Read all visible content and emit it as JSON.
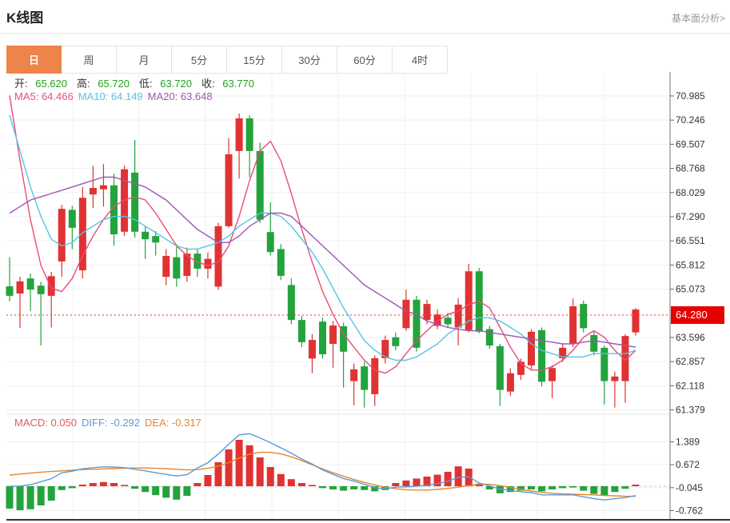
{
  "header": {
    "title": "K线图",
    "link": "基本面分析>"
  },
  "tabs": [
    {
      "label": "日",
      "active": true
    },
    {
      "label": "周",
      "active": false
    },
    {
      "label": "月",
      "active": false
    },
    {
      "label": "5分",
      "active": false
    },
    {
      "label": "15分",
      "active": false
    },
    {
      "label": "30分",
      "active": false
    },
    {
      "label": "60分",
      "active": false
    },
    {
      "label": "4时",
      "active": false
    }
  ],
  "legend": {
    "ohlc": [
      {
        "label": "开:",
        "value": "65.620"
      },
      {
        "label": "高:",
        "value": "65.720"
      },
      {
        "label": "低:",
        "value": "63.720"
      },
      {
        "label": "收:",
        "value": "63.770"
      }
    ],
    "ma": [
      {
        "label": "MA5:",
        "value": "64.466",
        "color": "#e8517e"
      },
      {
        "label": "MA10:",
        "value": "64.149",
        "color": "#55c5e2"
      },
      {
        "label": "MA20:",
        "value": "63.648",
        "color": "#a055b5"
      }
    ],
    "macd": [
      {
        "label": "MACD:",
        "value": "0.050",
        "color": "#e25b5b"
      },
      {
        "label": "DIFF:",
        "value": "-0.292",
        "color": "#5b9bd5"
      },
      {
        "label": "DEA:",
        "value": "-0.317",
        "color": "#e8862e"
      }
    ]
  },
  "colors": {
    "up": "#e03232",
    "down": "#23a33c",
    "ma5": "#eb4b78",
    "ma10": "#55c5e2",
    "ma20": "#a055b5",
    "diff": "#5b9bd5",
    "dea": "#e8862e",
    "price_line": "#e53935",
    "badge_bg": "#e60000",
    "value_green": "#21a121",
    "axis_text": "#333333"
  },
  "chart_data": {
    "type": "candlestick_with_macd",
    "price_axis_labels": [
      "70.985",
      "70.246",
      "69.507",
      "68.768",
      "68.029",
      "67.290",
      "66.551",
      "65.812",
      "65.073",
      "63.596",
      "62.857",
      "62.118",
      "61.379"
    ],
    "price_line": {
      "value": 64.28,
      "label": "64.280"
    },
    "candles_format": [
      "open",
      "high",
      "low",
      "close"
    ],
    "candles": [
      [
        65.16,
        66.05,
        64.7,
        64.87
      ],
      [
        64.94,
        65.45,
        63.89,
        65.31
      ],
      [
        65.4,
        65.55,
        64.4,
        65.06
      ],
      [
        65.18,
        65.3,
        63.35,
        64.92
      ],
      [
        64.87,
        65.6,
        63.9,
        65.47
      ],
      [
        65.92,
        67.65,
        65.45,
        67.53
      ],
      [
        67.5,
        67.62,
        66.3,
        66.95
      ],
      [
        65.65,
        68.2,
        65.4,
        67.87
      ],
      [
        67.97,
        68.85,
        67.55,
        68.17
      ],
      [
        68.13,
        68.9,
        67.6,
        68.25
      ],
      [
        68.25,
        68.6,
        66.4,
        66.75
      ],
      [
        66.83,
        68.85,
        66.7,
        68.74
      ],
      [
        68.64,
        69.64,
        66.65,
        66.83
      ],
      [
        66.83,
        67.0,
        66.0,
        66.6
      ],
      [
        66.7,
        66.85,
        66.1,
        66.5
      ],
      [
        65.45,
        66.3,
        65.2,
        66.09
      ],
      [
        66.05,
        66.45,
        65.15,
        65.4
      ],
      [
        65.48,
        66.35,
        65.3,
        66.16
      ],
      [
        66.16,
        66.3,
        65.45,
        65.7
      ],
      [
        65.7,
        66.2,
        65.4,
        66.0
      ],
      [
        65.15,
        67.1,
        65.05,
        67.0
      ],
      [
        67.0,
        69.7,
        66.95,
        69.2
      ],
      [
        69.3,
        70.45,
        68.46,
        70.3
      ],
      [
        70.3,
        70.4,
        68.5,
        69.3
      ],
      [
        69.3,
        69.55,
        67.1,
        67.2
      ],
      [
        66.82,
        67.73,
        66.1,
        66.21
      ],
      [
        66.3,
        66.45,
        65.35,
        65.48
      ],
      [
        65.2,
        65.4,
        64.0,
        64.13
      ],
      [
        64.13,
        64.25,
        63.3,
        63.45
      ],
      [
        62.95,
        63.7,
        62.5,
        63.52
      ],
      [
        64.08,
        64.2,
        62.95,
        63.08
      ],
      [
        63.4,
        64.1,
        62.67,
        63.96
      ],
      [
        63.94,
        64.05,
        62.06,
        63.16
      ],
      [
        62.26,
        62.8,
        61.52,
        62.62
      ],
      [
        62.71,
        62.85,
        61.45,
        61.99
      ],
      [
        61.86,
        63.05,
        61.5,
        62.96
      ],
      [
        62.96,
        63.65,
        62.8,
        63.52
      ],
      [
        63.6,
        63.75,
        63.2,
        63.33
      ],
      [
        63.88,
        65.06,
        63.8,
        64.75
      ],
      [
        64.75,
        64.87,
        63.16,
        63.28
      ],
      [
        64.13,
        64.75,
        64.0,
        64.62
      ],
      [
        63.95,
        64.45,
        63.85,
        64.3
      ],
      [
        64.2,
        64.35,
        63.9,
        64.0
      ],
      [
        63.9,
        64.8,
        63.35,
        64.6
      ],
      [
        63.82,
        65.85,
        63.75,
        65.62
      ],
      [
        65.62,
        65.72,
        63.72,
        63.77
      ],
      [
        63.85,
        63.95,
        63.25,
        63.35
      ],
      [
        63.33,
        63.4,
        61.5,
        61.99
      ],
      [
        61.94,
        62.65,
        61.8,
        62.5
      ],
      [
        62.45,
        62.95,
        62.3,
        62.85
      ],
      [
        62.74,
        63.85,
        62.6,
        63.77
      ],
      [
        63.82,
        63.9,
        62.1,
        62.24
      ],
      [
        62.26,
        62.75,
        61.74,
        62.66
      ],
      [
        62.96,
        63.4,
        62.85,
        63.28
      ],
      [
        63.4,
        64.79,
        63.3,
        64.55
      ],
      [
        64.62,
        64.72,
        63.75,
        63.88
      ],
      [
        63.67,
        63.8,
        63.05,
        63.16
      ],
      [
        63.28,
        63.35,
        61.55,
        62.26
      ],
      [
        62.26,
        62.55,
        61.45,
        62.4
      ],
      [
        62.26,
        63.7,
        61.6,
        63.64
      ],
      [
        63.75,
        64.5,
        63.65,
        64.45
      ]
    ],
    "ma5": [
      71.0,
      69.0,
      67.2,
      65.8,
      65.1,
      65.0,
      65.4,
      66.1,
      66.7,
      67.2,
      67.6,
      67.8,
      67.9,
      67.8,
      67.4,
      66.9,
      66.4,
      66.1,
      65.9,
      65.8,
      65.9,
      66.4,
      67.3,
      68.4,
      69.3,
      69.6,
      69.0,
      68.0,
      66.9,
      65.9,
      65.0,
      64.3,
      63.7,
      63.3,
      62.9,
      62.6,
      62.5,
      62.7,
      63.1,
      63.5,
      63.8,
      64.1,
      64.3,
      64.4,
      64.6,
      64.7,
      64.5,
      63.9,
      63.3,
      62.8,
      62.6,
      62.6,
      62.7,
      62.9,
      63.2,
      63.6,
      63.8,
      63.6,
      63.2,
      62.9,
      63.2
    ],
    "ma10": [
      70.4,
      69.3,
      68.2,
      67.3,
      66.6,
      66.4,
      66.5,
      66.8,
      67.0,
      67.2,
      67.3,
      67.3,
      67.2,
      67.0,
      66.8,
      66.6,
      66.4,
      66.3,
      66.3,
      66.4,
      66.5,
      66.7,
      67.0,
      67.2,
      67.4,
      67.4,
      67.3,
      67.0,
      66.6,
      66.2,
      65.7,
      65.1,
      64.5,
      64.0,
      63.5,
      63.2,
      63.0,
      62.9,
      62.9,
      63.0,
      63.2,
      63.4,
      63.7,
      63.9,
      64.1,
      64.2,
      64.2,
      64.1,
      63.9,
      63.7,
      63.4,
      63.2,
      63.1,
      63.0,
      63.0,
      63.0,
      63.1,
      63.1,
      63.1,
      63.1,
      63.2
    ],
    "ma20": [
      67.4,
      67.6,
      67.8,
      67.9,
      68.0,
      68.1,
      68.2,
      68.3,
      68.4,
      68.5,
      68.5,
      68.4,
      68.3,
      68.2,
      68.0,
      67.8,
      67.5,
      67.2,
      66.9,
      66.7,
      66.5,
      66.5,
      66.7,
      67.0,
      67.2,
      67.4,
      67.4,
      67.3,
      67.0,
      66.7,
      66.4,
      66.1,
      65.8,
      65.5,
      65.2,
      65.0,
      64.8,
      64.6,
      64.4,
      64.3,
      64.1,
      64.0,
      63.9,
      63.85,
      63.8,
      63.8,
      63.75,
      63.7,
      63.65,
      63.6,
      63.55,
      63.5,
      63.45,
      63.4,
      63.4,
      63.45,
      63.5,
      63.45,
      63.4,
      63.35,
      63.3
    ],
    "macd": {
      "axis_labels": [
        "1.389",
        "0.672",
        "-0.045",
        "-0.762"
      ],
      "histogram": [
        -0.7,
        -0.75,
        -0.72,
        -0.6,
        -0.45,
        -0.12,
        -0.06,
        0.05,
        0.1,
        0.13,
        0.1,
        0.04,
        -0.08,
        -0.18,
        -0.28,
        -0.36,
        -0.42,
        -0.3,
        0.1,
        0.35,
        0.75,
        1.15,
        1.45,
        1.28,
        0.9,
        0.6,
        0.38,
        0.22,
        0.1,
        0.04,
        -0.06,
        -0.1,
        -0.14,
        -0.1,
        -0.12,
        -0.16,
        -0.12,
        0.1,
        0.18,
        0.24,
        0.3,
        0.36,
        0.45,
        0.62,
        0.55,
        0.08,
        -0.1,
        -0.22,
        -0.18,
        -0.14,
        -0.1,
        -0.16,
        -0.1,
        -0.06,
        -0.04,
        -0.14,
        -0.24,
        -0.28,
        -0.18,
        -0.08,
        0.05
      ],
      "dea": [
        0.35,
        0.38,
        0.41,
        0.44,
        0.46,
        0.48,
        0.5,
        0.52,
        0.53,
        0.54,
        0.55,
        0.56,
        0.57,
        0.57,
        0.56,
        0.55,
        0.53,
        0.51,
        0.52,
        0.56,
        0.63,
        0.74,
        0.88,
        1.0,
        1.06,
        1.06,
        1.01,
        0.92,
        0.8,
        0.67,
        0.54,
        0.42,
        0.31,
        0.21,
        0.12,
        0.04,
        -0.03,
        -0.08,
        -0.11,
        -0.12,
        -0.12,
        -0.1,
        -0.07,
        -0.03,
        0.02,
        0.06,
        0.06,
        0.02,
        -0.04,
        -0.1,
        -0.15,
        -0.19,
        -0.22,
        -0.24,
        -0.25,
        -0.26,
        -0.27,
        -0.29,
        -0.3,
        -0.315,
        -0.317
      ],
      "diff_rule": "diff = dea + histogram/2"
    }
  }
}
